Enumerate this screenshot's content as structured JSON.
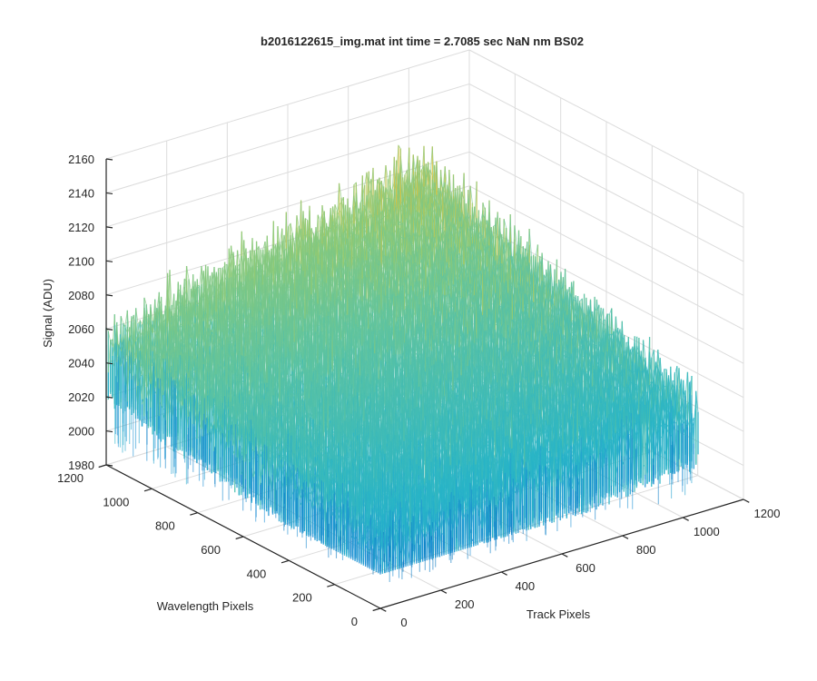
{
  "chart_data": {
    "type": "surface3d",
    "title": "b2016122615_img.mat int time = 2.7085 sec  NaN nm BS02",
    "xlabel": "Track Pixels",
    "ylabel": "Wavelength Pixels",
    "zlabel": "Signal (ADU)",
    "xlim": [
      0,
      1200
    ],
    "ylim": [
      0,
      1200
    ],
    "zlim": [
      1980,
      2160
    ],
    "data_extent": {
      "track_max": 1050,
      "wavelength_max": 1200
    },
    "x_ticks": [
      "0",
      "200",
      "400",
      "600",
      "800",
      "1000",
      "1200"
    ],
    "y_ticks": [
      "0",
      "200",
      "400",
      "600",
      "800",
      "1000",
      "1200"
    ],
    "z_ticks": [
      "1980",
      "2000",
      "2020",
      "2040",
      "2060",
      "2080",
      "2100",
      "2120",
      "2140",
      "2160"
    ],
    "surface_profile": {
      "corner_means": {
        "track0_wl0": 2020,
        "track_max_wl0": 2040,
        "track0_wl_max": 2050,
        "track_max_wl_max": 2095
      },
      "noise_amplitude": 15,
      "peak_value": 2155,
      "min_value": 2000
    },
    "colormap": [
      "#0072BD",
      "#1E90D6",
      "#27B4C8",
      "#5CC3A2",
      "#9BCB6A",
      "#D7C344",
      "#EDB120"
    ],
    "grid": true
  }
}
